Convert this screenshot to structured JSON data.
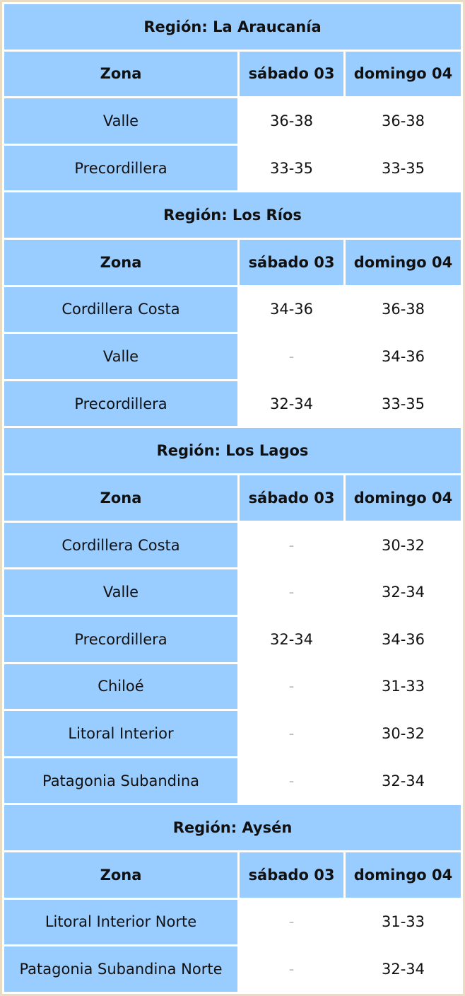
{
  "regions": [
    {
      "title": "Región: La Araucanía",
      "header": [
        "Zona",
        "sábado 03",
        "domingo 04"
      ],
      "rows": [
        [
          "Valle",
          "36-38",
          "36-38"
        ],
        [
          "Precordillera",
          "33-35",
          "33-35"
        ]
      ]
    },
    {
      "title": "Región: Los Ríos",
      "header": [
        "Zona",
        "sábado 03",
        "domingo 04"
      ],
      "rows": [
        [
          "Cordillera Costa",
          "34-36",
          "36-38"
        ],
        [
          "Valle",
          "-",
          "34-36"
        ],
        [
          "Precordillera",
          "32-34",
          "33-35"
        ]
      ]
    },
    {
      "title": "Región: Los Lagos",
      "header": [
        "Zona",
        "sábado 03",
        "domingo 04"
      ],
      "rows": [
        [
          "Cordillera Costa",
          "-",
          "30-32"
        ],
        [
          "Valle",
          "-",
          "32-34"
        ],
        [
          "Precordillera",
          "32-34",
          "34-36"
        ],
        [
          "Chiloé",
          "-",
          "31-33"
        ],
        [
          "Litoral Interior",
          "-",
          "30-32"
        ],
        [
          "Patagonia Subandina",
          "-",
          "32-34"
        ]
      ]
    },
    {
      "title": "Región: Aysén",
      "header": [
        "Zona",
        "sábado 03",
        "domingo 04"
      ],
      "rows": [
        [
          "Litoral Interior Norte",
          "-",
          "31-33"
        ],
        [
          "Patagonia Subandina Norte",
          "-",
          "32-34"
        ]
      ]
    }
  ]
}
